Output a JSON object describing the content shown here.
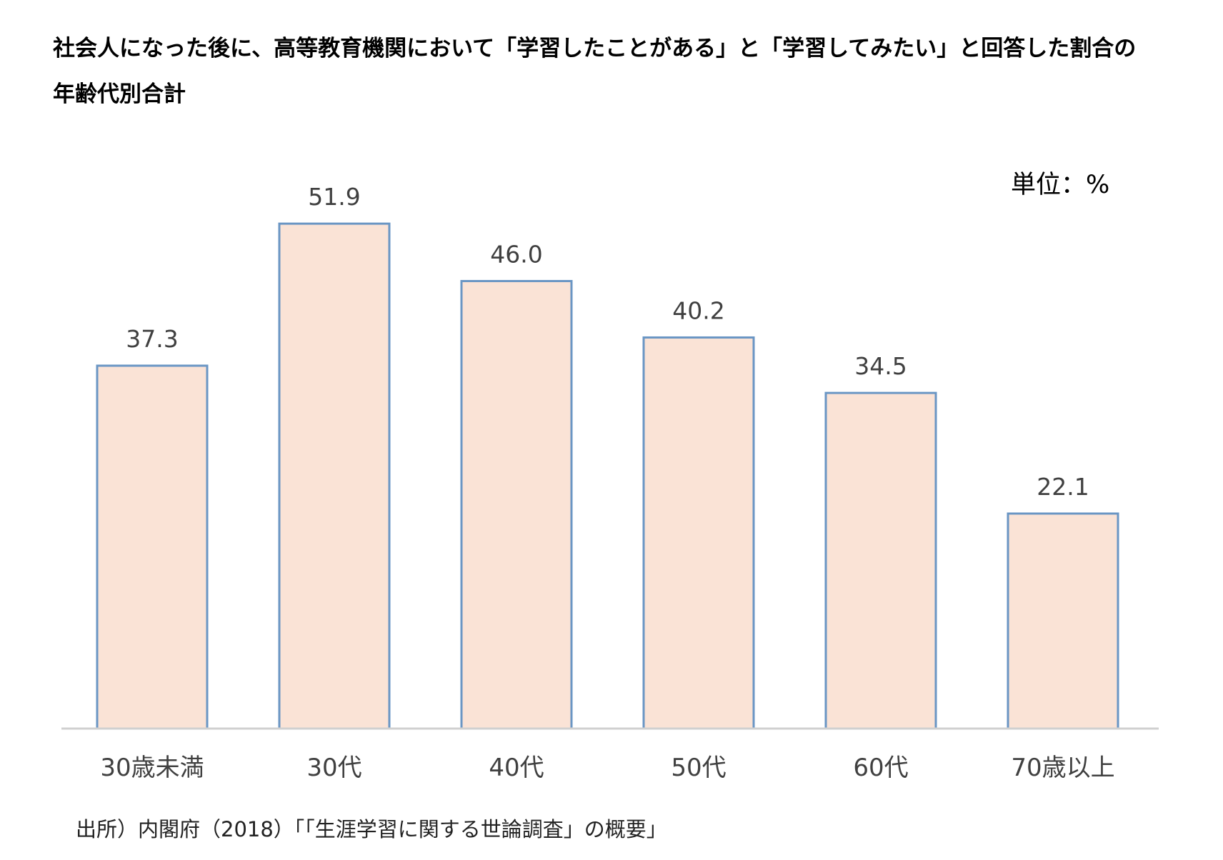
{
  "title": {
    "line1": "社会人になった後に、高等教育機関において「学習したことがある」と「学習してみたい」と回答した割合の",
    "line2": "年齢代別合計"
  },
  "unit_label": "単位：%",
  "source": "出所）内閣府（2018）「「生涯学習に関する世論調査」の概要」",
  "colors": {
    "bar_fill": "#fae3d6",
    "bar_stroke": "#6a96c4",
    "axis_line": "#d0d0d0",
    "label_text": "#404040"
  },
  "chart_data": {
    "type": "bar",
    "categories": [
      "30歳未満",
      "30代",
      "40代",
      "50代",
      "60代",
      "70歳以上"
    ],
    "values": [
      37.3,
      51.9,
      46.0,
      40.2,
      34.5,
      22.1
    ],
    "value_labels": [
      "37.3",
      "51.9",
      "46.0",
      "40.2",
      "34.5",
      "22.1"
    ],
    "ylim": [
      0,
      60
    ],
    "grid": false,
    "legend": "none"
  }
}
